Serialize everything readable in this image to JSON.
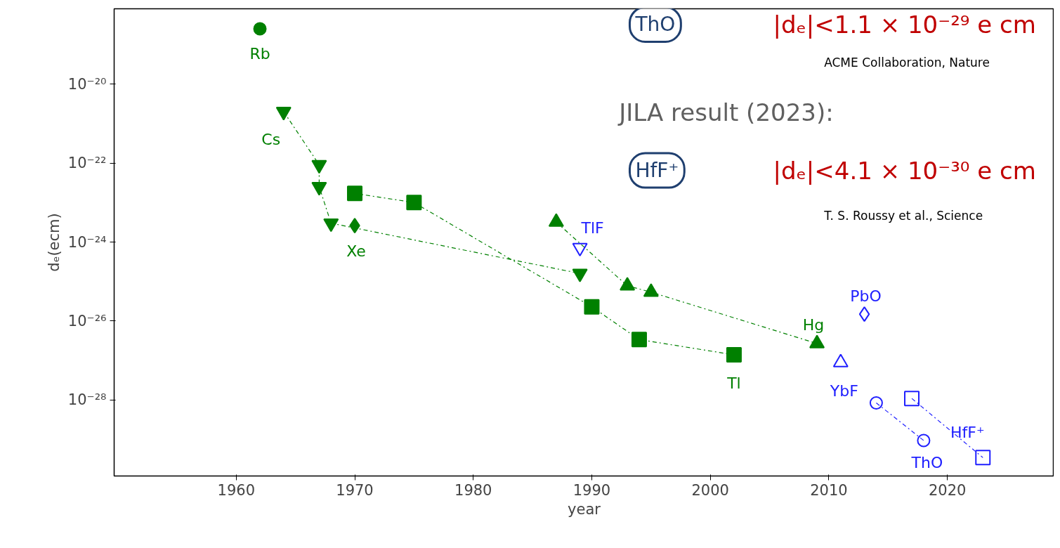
{
  "chart_data": {
    "type": "scatter",
    "xlabel": "year",
    "ylabel": "dₑ(ecm)",
    "log": "y",
    "xlim": [
      1949.7,
      2029
    ],
    "xticks": [
      1960,
      1970,
      1980,
      1990,
      2000,
      2010,
      2020
    ],
    "ylim": [
      1.2e-30,
      8e-19
    ],
    "yticks": [
      {
        "value": 1e-28,
        "label": "10⁻²⁸"
      },
      {
        "value": 1e-26,
        "label": "10⁻²⁶"
      },
      {
        "value": 1e-24,
        "label": "10⁻²⁴"
      },
      {
        "value": 1e-22,
        "label": "10⁻²²"
      },
      {
        "value": 1e-20,
        "label": "10⁻²⁰"
      }
    ],
    "grid": false,
    "series": [
      {
        "name": "Rb",
        "color": "#008000",
        "marker": "circle",
        "x": [
          1962
        ],
        "values": [
          2.5e-19
        ]
      },
      {
        "name": "Cs",
        "color": "#008000",
        "marker": "triangle",
        "line_style": "dashdot",
        "x": [
          1964,
          1967,
          1967,
          1968,
          1989
        ],
        "values": [
          2e-21,
          9e-23,
          2.5e-23,
          3e-24,
          1.6e-25
        ]
      },
      {
        "name": "Xe",
        "color": "#008000",
        "marker": "diamond",
        "x": [
          1970
        ],
        "values": [
          2.6e-24
        ]
      },
      {
        "name": "Tl",
        "color": "#008000",
        "marker": "square",
        "line_style": "dashdot",
        "x": [
          1970,
          1975,
          1990,
          1994,
          2002
        ],
        "values": [
          1.7e-23,
          1e-23,
          2.3e-26,
          3.4e-27,
          1.4e-27
        ]
      },
      {
        "name": "Hg",
        "color": "#008000",
        "marker": "triangle",
        "line_style": "dashdot",
        "x": [
          1987,
          1993,
          1995,
          2009
        ],
        "values": [
          3.2e-24,
          7.8e-26,
          5.4e-26,
          2.7e-27
        ]
      },
      {
        "name": "TlF",
        "color": "#2020ff",
        "marker": "triangle",
        "x": [
          1989
        ],
        "values": [
          7.2e-25
        ]
      },
      {
        "name": "PbO",
        "color": "#2020ff",
        "marker": "diamond",
        "x": [
          2013
        ],
        "values": [
          1.5e-26
        ]
      },
      {
        "name": "YbF",
        "color": "#2020ff",
        "marker": "triangle",
        "x": [
          2011
        ],
        "values": [
          8.9e-28
        ]
      },
      {
        "name": "ThO",
        "color": "#2020ff",
        "marker": "circle",
        "line_style": "dashdot",
        "x": [
          2014,
          2018
        ],
        "values": [
          8.5e-29,
          9.5e-30
        ]
      },
      {
        "name": "HfF⁺",
        "color": "#2020ff",
        "marker": "square",
        "line_style": "dashdot",
        "x": [
          2017,
          2023
        ],
        "values": [
          1.1e-28,
          3.5e-30
        ]
      }
    ],
    "annotations": [
      "ThO",
      "|dₑ|<1.1 × 10⁻²⁹ e cm",
      "ACME Collaboration, Nature",
      "JILA result (2023):",
      "HfF⁺",
      "|dₑ|<4.1 × 10⁻³⁰ e cm",
      "T. S. Roussy et al., Science"
    ]
  }
}
